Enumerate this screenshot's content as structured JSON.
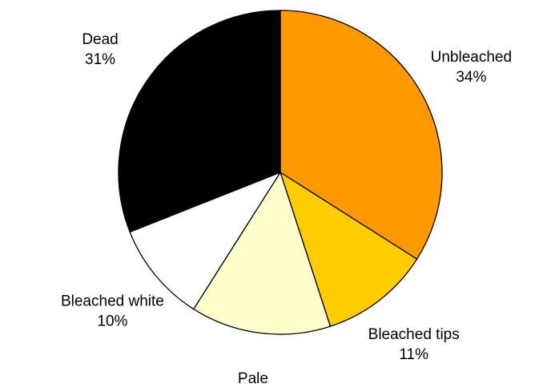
{
  "chart_data": {
    "type": "pie",
    "categories": [
      "Unbleached",
      "Bleached tips",
      "Pale",
      "Bleached white",
      "Dead"
    ],
    "values": [
      34,
      11,
      14,
      10,
      31
    ],
    "value_labels": [
      "34%",
      "11%",
      "14%",
      "10%",
      "31%"
    ],
    "colors": [
      "#ff9900",
      "#ffcc00",
      "#ffffcc",
      "#ffffff",
      "#000000"
    ]
  }
}
